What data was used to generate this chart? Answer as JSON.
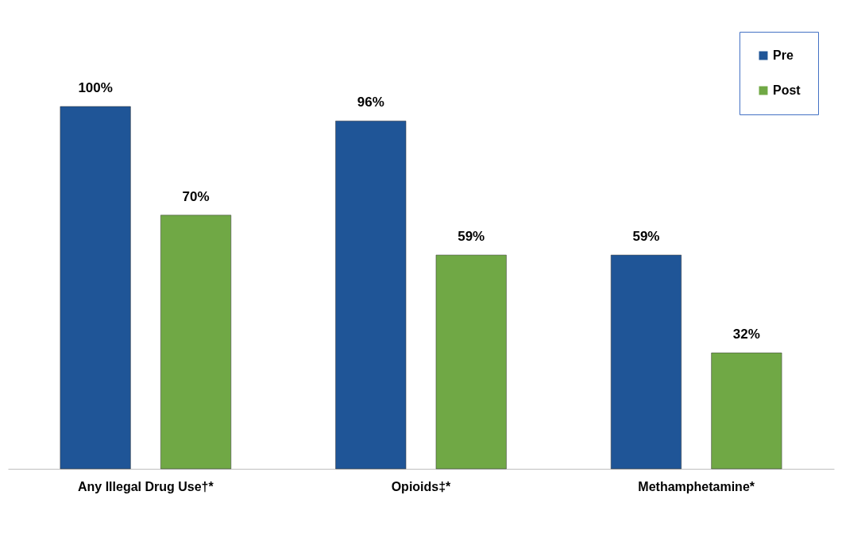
{
  "chart_data": {
    "type": "bar",
    "categories": [
      "Any Illegal Drug Use†*",
      "Opioids‡*",
      "Methamphetamine*"
    ],
    "series": [
      {
        "name": "Pre",
        "color": "#1f5597",
        "values": [
          100,
          96,
          59
        ],
        "value_labels": [
          "100%",
          "96%",
          "59%"
        ]
      },
      {
        "name": "Post",
        "color": "#70a845",
        "values": [
          70,
          59,
          32
        ],
        "value_labels": [
          "70%",
          "59%",
          "32%"
        ]
      }
    ],
    "legend": "top right",
    "grid": false
  }
}
